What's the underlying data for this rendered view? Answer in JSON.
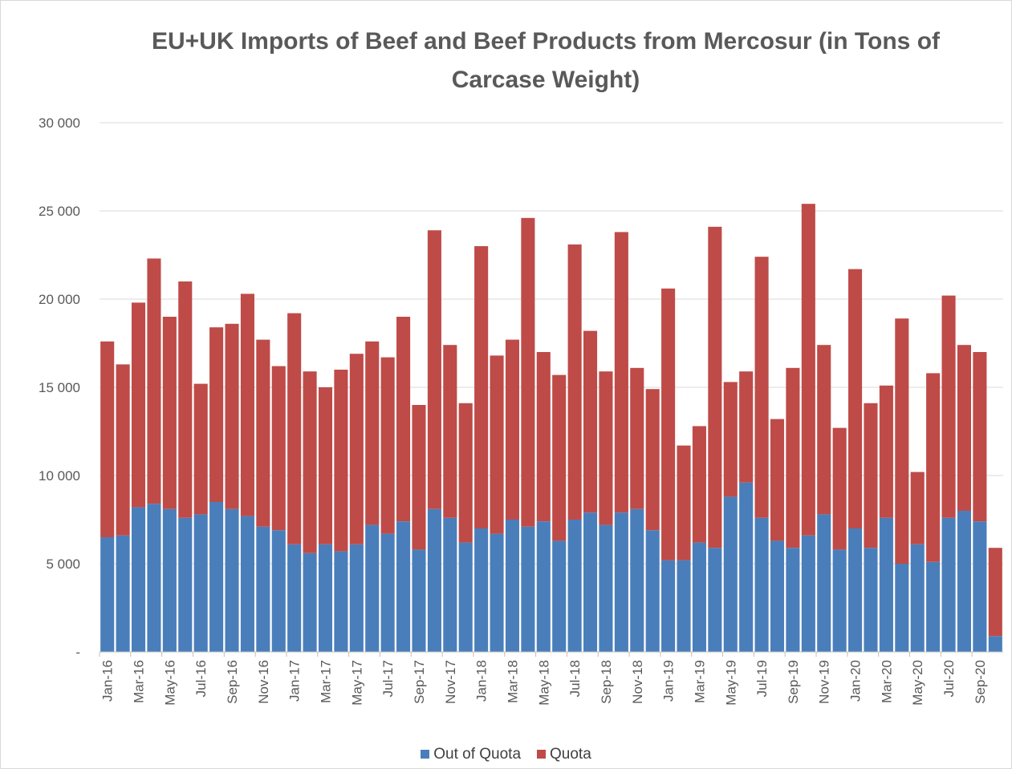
{
  "chart_data": {
    "type": "bar",
    "stacked": true,
    "title": "EU+UK Imports of Beef and Beef Products from Mercosur (in Tons of Carcase Weight)",
    "xlabel": "",
    "ylabel": "",
    "ylim": [
      0,
      30000
    ],
    "yticks": [
      0,
      5000,
      10000,
      15000,
      20000,
      25000,
      30000
    ],
    "ytick_labels": [
      "-",
      "5 000",
      "10 000",
      "15 000",
      "20 000",
      "25 000",
      "30 000"
    ],
    "grid": true,
    "legend_position": "bottom",
    "categories": [
      "Jan-16",
      "Feb-16",
      "Mar-16",
      "Apr-16",
      "May-16",
      "Jun-16",
      "Jul-16",
      "Aug-16",
      "Sep-16",
      "Oct-16",
      "Nov-16",
      "Dec-16",
      "Jan-17",
      "Feb-17",
      "Mar-17",
      "Apr-17",
      "May-17",
      "Jun-17",
      "Jul-17",
      "Aug-17",
      "Sep-17",
      "Oct-17",
      "Nov-17",
      "Dec-17",
      "Jan-18",
      "Feb-18",
      "Mar-18",
      "Apr-18",
      "May-18",
      "Jun-18",
      "Jul-18",
      "Aug-18",
      "Sep-18",
      "Oct-18",
      "Nov-18",
      "Dec-18",
      "Jan-19",
      "Feb-19",
      "Mar-19",
      "Apr-19",
      "May-19",
      "Jun-19",
      "Jul-19",
      "Aug-19",
      "Sep-19",
      "Oct-19",
      "Nov-19",
      "Dec-19",
      "Jan-20",
      "Feb-20",
      "Mar-20",
      "Apr-20",
      "May-20",
      "Jun-20",
      "Jul-20",
      "Aug-20",
      "Sep-20",
      "Oct-20"
    ],
    "xtick_labels": [
      "Jan-16",
      "Mar-16",
      "May-16",
      "Jul-16",
      "Sep-16",
      "Nov-16",
      "Jan-17",
      "Mar-17",
      "May-17",
      "Jul-17",
      "Sep-17",
      "Nov-17",
      "Jan-18",
      "Mar-18",
      "May-18",
      "Jul-18",
      "Sep-18",
      "Nov-18",
      "Jan-19",
      "Mar-19",
      "May-19",
      "Jul-19",
      "Sep-19",
      "Nov-19",
      "Jan-20",
      "Mar-20",
      "May-20",
      "Jul-20",
      "Sep-20"
    ],
    "series": [
      {
        "name": "Out of Quota",
        "color": "#4a7ebb",
        "values": [
          6500,
          6600,
          8200,
          8400,
          8100,
          7600,
          7800,
          8500,
          8100,
          7700,
          7100,
          6900,
          6100,
          5600,
          6100,
          5700,
          6100,
          7200,
          6700,
          7400,
          5800,
          8100,
          7600,
          6200,
          7000,
          6700,
          7500,
          7100,
          7400,
          6300,
          7500,
          7900,
          7200,
          7900,
          8100,
          6900,
          5200,
          5200,
          6200,
          5900,
          8800,
          9600,
          7600,
          6300,
          5900,
          6600,
          7800,
          5800,
          7000,
          5900,
          7600,
          5000,
          6100,
          5100,
          7600,
          8000,
          7400,
          900
        ]
      },
      {
        "name": "Quota",
        "color": "#be4b48",
        "values": [
          11100,
          9700,
          11600,
          13900,
          10900,
          13400,
          7400,
          9900,
          10500,
          12600,
          10600,
          9300,
          13100,
          10300,
          8900,
          10300,
          10800,
          10400,
          10000,
          11600,
          8200,
          15800,
          9800,
          7900,
          16000,
          10100,
          10200,
          17500,
          9600,
          9400,
          15600,
          10300,
          8700,
          15900,
          8000,
          8000,
          15400,
          6500,
          6600,
          18200,
          6500,
          6300,
          14800,
          6900,
          10200,
          18800,
          9600,
          6900,
          14700,
          8200,
          7500,
          13900,
          4100,
          10700,
          12600,
          9400,
          9600,
          5000
        ]
      }
    ]
  }
}
